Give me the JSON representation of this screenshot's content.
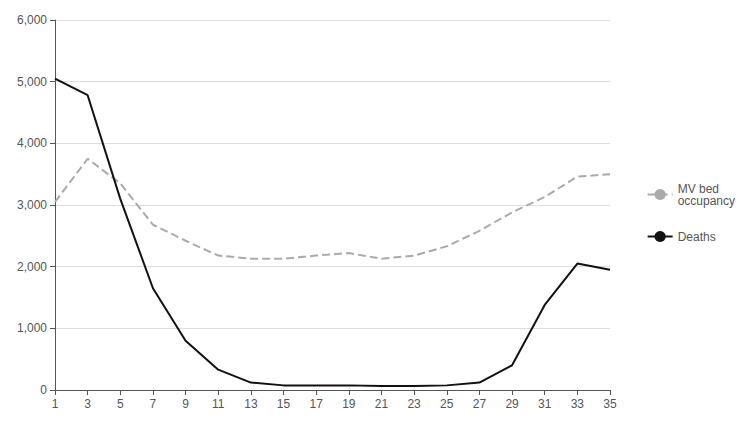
{
  "chart_data": {
    "type": "line",
    "x": [
      1,
      3,
      5,
      7,
      9,
      11,
      13,
      15,
      17,
      19,
      21,
      23,
      25,
      27,
      29,
      31,
      33,
      35
    ],
    "series": [
      {
        "name": "MV bed\noccupancy",
        "color": "#aaaaaa",
        "line_style": "dashed",
        "values": [
          3050,
          3750,
          3350,
          2680,
          2420,
          2180,
          2130,
          2130,
          2180,
          2220,
          2130,
          2180,
          2330,
          2580,
          2880,
          3130,
          3460,
          3500
        ]
      },
      {
        "name": "Deaths",
        "color": "#111111",
        "line_style": "solid",
        "values": [
          5050,
          4780,
          3100,
          1650,
          800,
          330,
          120,
          75,
          75,
          75,
          65,
          65,
          75,
          120,
          400,
          1380,
          2050,
          1950
        ]
      }
    ],
    "xlim": [
      1,
      35
    ],
    "xticks": [
      1,
      3,
      5,
      7,
      9,
      11,
      13,
      15,
      17,
      19,
      21,
      23,
      25,
      27,
      29,
      31,
      33,
      35
    ],
    "ylim": [
      0,
      6000
    ],
    "yticks": [
      0,
      1000,
      2000,
      3000,
      4000,
      5000,
      6000
    ],
    "grid": true,
    "legend": "right"
  }
}
